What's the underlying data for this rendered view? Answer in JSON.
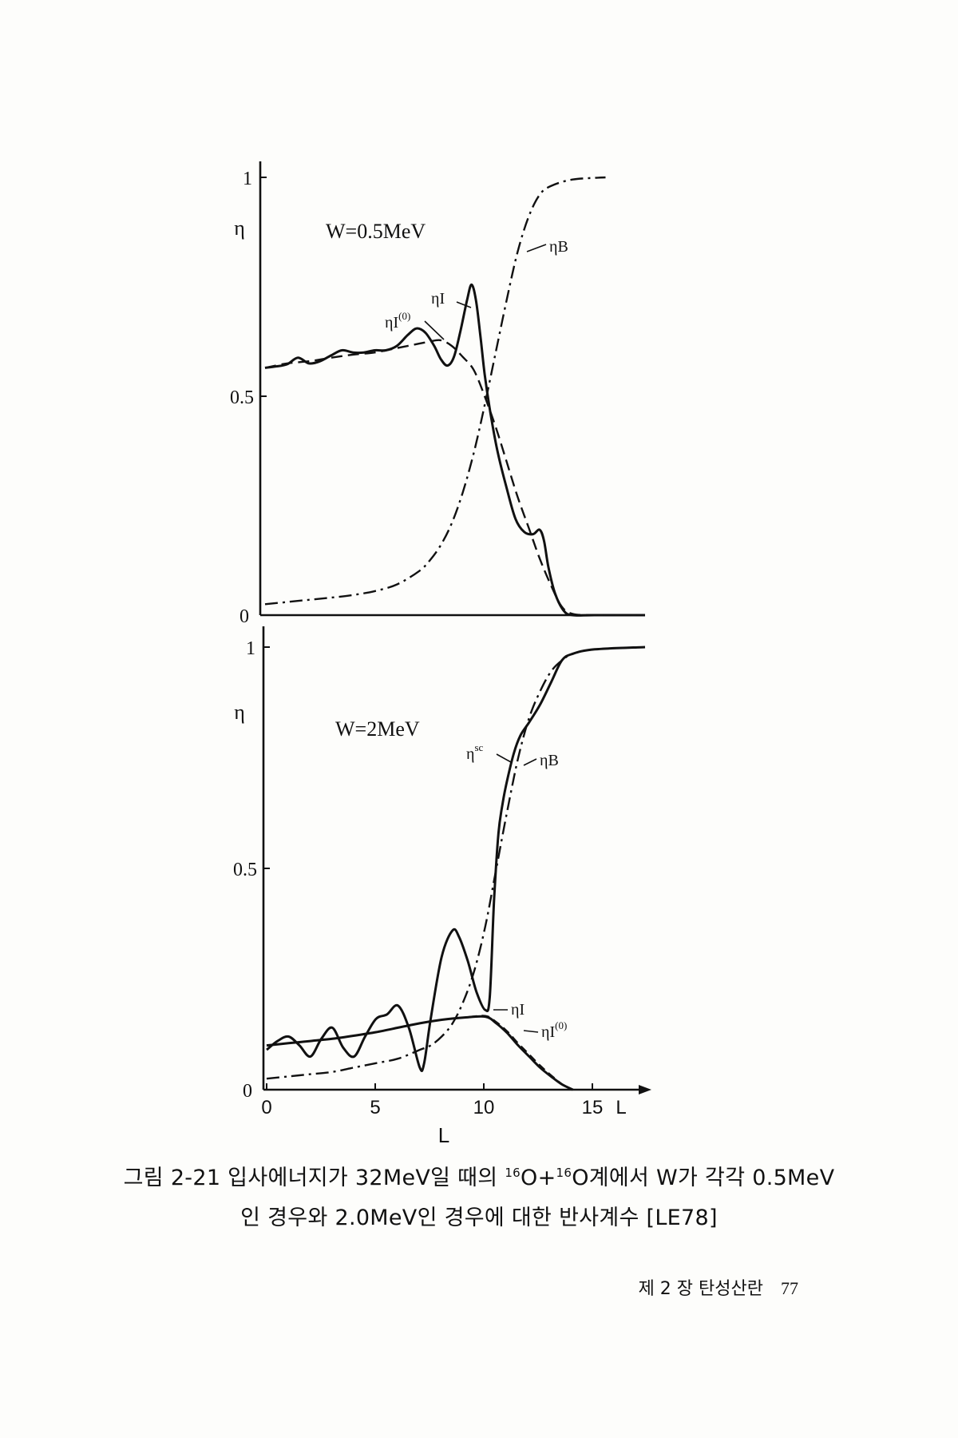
{
  "chart_data": [
    {
      "type": "line",
      "title": "W=0.5MeV",
      "ylabel": "η",
      "xlim": [
        0,
        17.3
      ],
      "ylim": [
        0,
        1
      ],
      "yticks": [
        "0",
        "0.5",
        "1"
      ],
      "grid": false,
      "labels": {
        "eta_b": "ηB",
        "eta_i": "ηI",
        "eta_i0": "ηI(0)",
        "eta_i0_base": "ηI",
        "eta_i0_sup": "(0)"
      },
      "series": [
        {
          "id": "eta_i",
          "style": "solid",
          "x": [
            0,
            0.5,
            1,
            1.5,
            2,
            2.5,
            3,
            3.5,
            4,
            4.5,
            5,
            5.5,
            6,
            6.5,
            6.9,
            7.3,
            7.7,
            8,
            8.3,
            8.6,
            8.9,
            9.2,
            9.4,
            9.6,
            9.8,
            10,
            10.3,
            10.6,
            11,
            11.4,
            11.8,
            12.2,
            12.5,
            12.7,
            12.9,
            13.2,
            13.6,
            14,
            15,
            17.3
          ],
          "y": [
            0.565,
            0.568,
            0.573,
            0.588,
            0.575,
            0.58,
            0.593,
            0.605,
            0.6,
            0.6,
            0.605,
            0.605,
            0.615,
            0.64,
            0.655,
            0.645,
            0.615,
            0.585,
            0.57,
            0.59,
            0.65,
            0.72,
            0.755,
            0.72,
            0.64,
            0.55,
            0.45,
            0.37,
            0.29,
            0.22,
            0.19,
            0.185,
            0.195,
            0.17,
            0.11,
            0.05,
            0.01,
            0,
            0,
            0
          ]
        },
        {
          "id": "eta_i0",
          "style": "dashed",
          "x": [
            0,
            1,
            2,
            3,
            4,
            5,
            6,
            7,
            7.5,
            8,
            8.5,
            9,
            9.5,
            10,
            10.5,
            11,
            11.5,
            12,
            12.5,
            13,
            13.5,
            14,
            15,
            17.3
          ],
          "y": [
            0.565,
            0.575,
            0.58,
            0.588,
            0.595,
            0.6,
            0.61,
            0.62,
            0.625,
            0.628,
            0.615,
            0.59,
            0.56,
            0.5,
            0.43,
            0.35,
            0.27,
            0.2,
            0.13,
            0.07,
            0.02,
            0.003,
            0,
            0
          ]
        },
        {
          "id": "eta_b",
          "style": "dashdot",
          "x": [
            0,
            1,
            2,
            3,
            4,
            5,
            6,
            7,
            7.5,
            8,
            8.5,
            9,
            9.5,
            10,
            10.5,
            11,
            11.5,
            12,
            12.5,
            13,
            14,
            15.5
          ],
          "y": [
            0.025,
            0.03,
            0.035,
            0.04,
            0.046,
            0.055,
            0.07,
            0.1,
            0.125,
            0.16,
            0.21,
            0.28,
            0.37,
            0.48,
            0.6,
            0.72,
            0.83,
            0.91,
            0.96,
            0.98,
            0.995,
            1.0
          ]
        }
      ]
    },
    {
      "type": "line",
      "title": "W=2MeV",
      "xlabel": "L",
      "ylabel": "η",
      "xlim": [
        0,
        17.3
      ],
      "ylim": [
        0,
        1
      ],
      "xticks": [
        "0",
        "5",
        "10",
        "15"
      ],
      "xaxis_end_label": "L",
      "yticks": [
        "0",
        "0.5",
        "1"
      ],
      "grid": false,
      "labels": {
        "eta_sc": "ηsc",
        "eta_sc_base": "η",
        "eta_sc_sup": "sc",
        "eta_b": "ηB",
        "eta_i": "ηI",
        "eta_i0": "ηI(0)",
        "eta_i0_base": "ηI",
        "eta_i0_sup": "(0)"
      },
      "series": [
        {
          "id": "eta_sc",
          "style": "solid",
          "x": [
            0,
            0.5,
            1,
            1.5,
            2,
            2.5,
            3,
            3.5,
            4,
            4.5,
            5,
            5.5,
            6,
            6.5,
            7,
            7.2,
            7.5,
            8,
            8.5,
            8.8,
            9.2,
            9.6,
            10,
            10.2,
            10.4,
            10.6,
            10.8,
            11,
            11.3,
            11.6,
            12,
            12.5,
            13,
            13.5,
            14,
            15,
            17.3
          ],
          "y": [
            0.09,
            0.11,
            0.12,
            0.1,
            0.075,
            0.115,
            0.14,
            0.095,
            0.075,
            0.12,
            0.16,
            0.17,
            0.19,
            0.14,
            0.05,
            0.06,
            0.16,
            0.3,
            0.36,
            0.345,
            0.29,
            0.22,
            0.18,
            0.21,
            0.43,
            0.58,
            0.65,
            0.7,
            0.76,
            0.8,
            0.83,
            0.87,
            0.92,
            0.97,
            0.985,
            0.995,
            1.0
          ]
        },
        {
          "id": "eta_i",
          "style": "solid",
          "x": [
            0,
            1,
            2,
            3,
            4,
            5,
            6,
            7,
            8,
            9,
            10,
            10.5,
            11,
            11.5,
            12,
            12.5,
            13,
            13.5,
            14
          ],
          "y": [
            0.1,
            0.105,
            0.11,
            0.115,
            0.122,
            0.13,
            0.14,
            0.15,
            0.158,
            0.163,
            0.165,
            0.15,
            0.128,
            0.1,
            0.075,
            0.05,
            0.03,
            0.012,
            0
          ]
        },
        {
          "id": "eta_i0",
          "style": "dashed",
          "x": [
            0,
            1,
            2,
            3,
            4,
            5,
            6,
            7,
            8,
            9,
            10,
            10.5,
            11,
            11.5,
            12,
            12.5,
            13,
            13.5,
            14
          ],
          "y": [
            0.1,
            0.105,
            0.11,
            0.115,
            0.122,
            0.13,
            0.14,
            0.15,
            0.158,
            0.163,
            0.167,
            0.153,
            0.132,
            0.105,
            0.08,
            0.055,
            0.033,
            0.013,
            0
          ]
        },
        {
          "id": "eta_b",
          "style": "dashdot",
          "x": [
            0,
            1,
            2,
            3,
            4,
            5,
            6,
            7,
            7.5,
            8,
            8.5,
            9,
            9.5,
            10,
            10.5,
            11,
            11.5,
            12,
            12.5,
            13,
            13.5,
            14,
            15,
            17.3
          ],
          "y": [
            0.025,
            0.03,
            0.035,
            0.04,
            0.05,
            0.06,
            0.07,
            0.09,
            0.1,
            0.12,
            0.15,
            0.2,
            0.27,
            0.37,
            0.5,
            0.63,
            0.75,
            0.84,
            0.9,
            0.945,
            0.97,
            0.985,
            0.995,
            1.0
          ]
        }
      ]
    }
  ],
  "caption": {
    "line1": {
      "prefix": "그림 2-21 입사에너지가 32MeV일 때의 ",
      "sup1": "16",
      "mid1": "O+",
      "sup2": "16",
      "suffix": "O계에서 W가 각각 0.5MeV"
    },
    "line2": "인 경우와 2.0MeV인 경우에 대한 반사계수 [LE78]"
  },
  "footer": {
    "chapter": "제 2 장 탄성산란",
    "page": "77"
  }
}
